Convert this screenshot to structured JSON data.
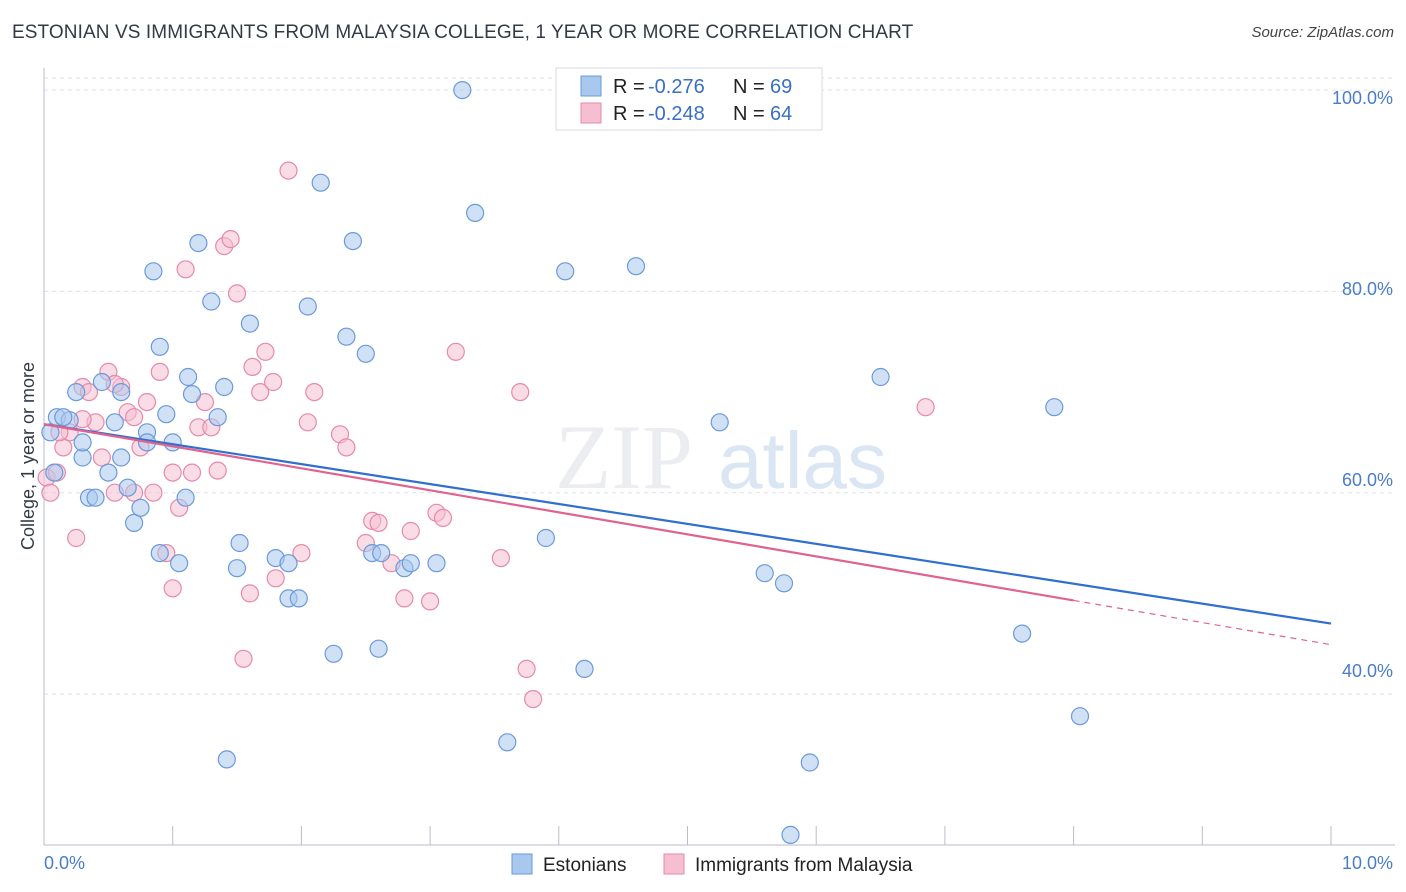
{
  "title": "ESTONIAN VS IMMIGRANTS FROM MALAYSIA COLLEGE, 1 YEAR OR MORE CORRELATION CHART",
  "source": "Source: ZipAtlas.com",
  "watermark": {
    "zip": "ZIP",
    "atlas": "atlas"
  },
  "colors": {
    "blue_fill": "#a9c8ee",
    "blue_stroke": "#6b9ad8",
    "blue_line": "#2f6fcf",
    "pink_fill": "#f6bfd1",
    "pink_stroke": "#e58aab",
    "pink_line": "#e0628f",
    "grid": "#dde1e8",
    "tick_label": "#4a7cc7"
  },
  "legend": {
    "rows": [
      {
        "r_label": "R =",
        "r_value": "-0.276",
        "n_label": "N =",
        "n_value": "69"
      },
      {
        "r_label": "R =",
        "r_value": "-0.248",
        "n_label": "N =",
        "n_value": "64"
      }
    ]
  },
  "chart_data": {
    "type": "scatter",
    "title": "ESTONIAN VS IMMIGRANTS FROM MALAYSIA COLLEGE, 1 YEAR OR MORE CORRELATION CHART",
    "xlabel": "",
    "ylabel": "College, 1 year or more",
    "xlim": [
      0,
      10
    ],
    "ylim": [
      25,
      101.5
    ],
    "x_tick_labels": [
      "0.0%",
      "10.0%"
    ],
    "y_ticks": [
      40,
      60,
      80,
      100
    ],
    "y_tick_labels": [
      "40.0%",
      "60.0%",
      "80.0%",
      "100.0%"
    ],
    "grid": true,
    "legend_position": "top-center",
    "series": [
      {
        "name": "Estonians",
        "color": "blue",
        "R": -0.276,
        "N": 69,
        "trend": {
          "x0": 0,
          "y0": 66.8,
          "x1": 10,
          "y1": 47.0
        },
        "points": [
          [
            0.05,
            66
          ],
          [
            0.1,
            67.5
          ],
          [
            0.2,
            67.2
          ],
          [
            0.25,
            70
          ],
          [
            0.3,
            63.5
          ],
          [
            0.3,
            65
          ],
          [
            0.35,
            59.5
          ],
          [
            0.4,
            59.5
          ],
          [
            0.45,
            71
          ],
          [
            0.5,
            62
          ],
          [
            0.55,
            67
          ],
          [
            0.6,
            70
          ],
          [
            0.6,
            63.5
          ],
          [
            0.65,
            60.5
          ],
          [
            0.7,
            57
          ],
          [
            0.75,
            58.5
          ],
          [
            0.8,
            66
          ],
          [
            0.8,
            65
          ],
          [
            0.85,
            82
          ],
          [
            0.9,
            54
          ],
          [
            0.9,
            74.5
          ],
          [
            0.95,
            67.8
          ],
          [
            1.0,
            65
          ],
          [
            1.05,
            53
          ],
          [
            1.1,
            59.5
          ],
          [
            1.12,
            71.5
          ],
          [
            1.15,
            69.8
          ],
          [
            1.2,
            84.8
          ],
          [
            1.3,
            79
          ],
          [
            1.35,
            67.5
          ],
          [
            1.4,
            70.5
          ],
          [
            1.42,
            33.5
          ],
          [
            1.5,
            52.5
          ],
          [
            1.52,
            55
          ],
          [
            1.6,
            76.8
          ],
          [
            1.8,
            53.5
          ],
          [
            1.9,
            53
          ],
          [
            1.9,
            49.5
          ],
          [
            1.98,
            49.5
          ],
          [
            2.05,
            78.5
          ],
          [
            2.15,
            90.8
          ],
          [
            2.25,
            44
          ],
          [
            2.35,
            75.5
          ],
          [
            2.4,
            85
          ],
          [
            2.5,
            73.8
          ],
          [
            2.55,
            54
          ],
          [
            2.6,
            44.5
          ],
          [
            2.62,
            54
          ],
          [
            2.8,
            52.5
          ],
          [
            2.85,
            53
          ],
          [
            3.05,
            53
          ],
          [
            3.25,
            100
          ],
          [
            3.35,
            87.8
          ],
          [
            3.6,
            35.2
          ],
          [
            3.9,
            55.5
          ],
          [
            4.05,
            82
          ],
          [
            4.2,
            42.5
          ],
          [
            4.6,
            82.5
          ],
          [
            5.25,
            67
          ],
          [
            5.6,
            52
          ],
          [
            5.75,
            51
          ],
          [
            5.95,
            33.2
          ],
          [
            5.8,
            26
          ],
          [
            6.5,
            71.5
          ],
          [
            7.6,
            46
          ],
          [
            7.85,
            68.5
          ],
          [
            8.05,
            37.8
          ],
          [
            0.08,
            62
          ],
          [
            0.15,
            67.5
          ]
        ]
      },
      {
        "name": "Immigrants from Malaysia",
        "color": "pink",
        "R": -0.248,
        "N": 64,
        "trend": {
          "x0": 0,
          "y0": 66.8,
          "x1": 8.0,
          "y1": 49.3
        },
        "trend_dashed": {
          "x0": 8.0,
          "y0": 49.3,
          "x1": 10,
          "y1": 44.9
        },
        "points": [
          [
            0.02,
            61.5
          ],
          [
            0.05,
            60
          ],
          [
            0.1,
            62
          ],
          [
            0.15,
            64.5
          ],
          [
            0.2,
            66
          ],
          [
            0.25,
            55.5
          ],
          [
            0.3,
            70.5
          ],
          [
            0.35,
            70
          ],
          [
            0.4,
            67
          ],
          [
            0.45,
            63.5
          ],
          [
            0.5,
            72
          ],
          [
            0.55,
            60
          ],
          [
            0.6,
            70.5
          ],
          [
            0.65,
            68
          ],
          [
            0.7,
            67.5
          ],
          [
            0.7,
            60
          ],
          [
            0.75,
            64.5
          ],
          [
            0.8,
            69
          ],
          [
            0.85,
            60
          ],
          [
            0.9,
            72
          ],
          [
            0.95,
            54
          ],
          [
            1.0,
            50.5
          ],
          [
            1.05,
            58.5
          ],
          [
            1.1,
            82.2
          ],
          [
            1.15,
            62
          ],
          [
            1.2,
            66.5
          ],
          [
            1.25,
            69
          ],
          [
            1.3,
            66.5
          ],
          [
            1.35,
            62.2
          ],
          [
            1.4,
            84.5
          ],
          [
            1.45,
            85.2
          ],
          [
            1.5,
            79.8
          ],
          [
            1.55,
            43.5
          ],
          [
            1.6,
            50
          ],
          [
            1.62,
            72.5
          ],
          [
            1.68,
            70
          ],
          [
            1.72,
            74
          ],
          [
            1.78,
            71
          ],
          [
            1.8,
            51.5
          ],
          [
            1.9,
            92
          ],
          [
            2.0,
            54
          ],
          [
            2.05,
            67
          ],
          [
            2.1,
            70
          ],
          [
            2.3,
            65.8
          ],
          [
            2.35,
            64.5
          ],
          [
            2.5,
            55
          ],
          [
            2.55,
            57.2
          ],
          [
            2.6,
            57
          ],
          [
            2.7,
            53
          ],
          [
            2.8,
            49.5
          ],
          [
            2.85,
            56.2
          ],
          [
            3.0,
            49.2
          ],
          [
            3.05,
            58
          ],
          [
            3.1,
            57.5
          ],
          [
            3.2,
            74
          ],
          [
            3.55,
            53.5
          ],
          [
            3.7,
            70
          ],
          [
            3.75,
            42.5
          ],
          [
            3.8,
            39.5
          ],
          [
            6.85,
            68.5
          ],
          [
            0.12,
            66
          ],
          [
            0.3,
            67.3
          ],
          [
            0.55,
            70.8
          ],
          [
            1.0,
            62
          ]
        ]
      }
    ]
  }
}
